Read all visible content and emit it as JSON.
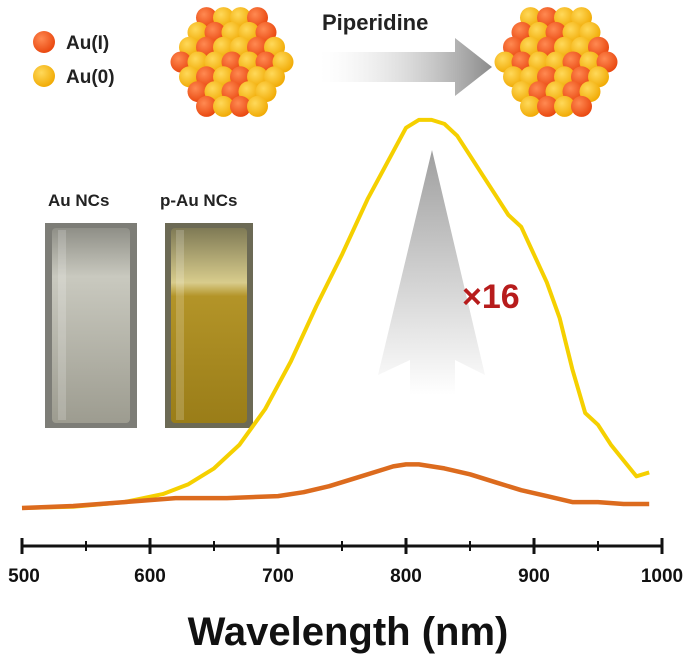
{
  "legend": {
    "items": [
      {
        "label": "Au(I)",
        "color": "#f2541a"
      },
      {
        "label": "Au(0)",
        "color": "#f7b614"
      }
    ]
  },
  "reaction": {
    "label": "Piperidine"
  },
  "vials": [
    {
      "label": "Au NCs",
      "tint": "#b9b7aa"
    },
    {
      "label": "p-Au NCs",
      "tint": "#a88a1f"
    }
  ],
  "enhancement_label": "×16",
  "colors": {
    "au_i": "#f2541a",
    "au_0": "#f7b614",
    "yellow_line": "#f5d000",
    "orange_line": "#dc6b1e",
    "annotation": "#b71c1c"
  },
  "chart_data": {
    "type": "line",
    "xlabel": "Wavelength (nm)",
    "ylabel": "",
    "xlim": [
      500,
      1000
    ],
    "ylim": [
      0,
      100
    ],
    "xticks": [
      500,
      600,
      700,
      800,
      900,
      1000
    ],
    "grid": false,
    "series": [
      {
        "color": "#f5d000",
        "x": [
          500,
          540,
          580,
          610,
          630,
          650,
          670,
          690,
          710,
          730,
          750,
          770,
          790,
          800,
          810,
          820,
          830,
          840,
          850,
          860,
          870,
          880,
          890,
          900,
          910,
          920,
          930,
          940,
          950,
          960,
          970,
          980,
          990
        ],
        "y": [
          0,
          0.3,
          1.5,
          3.5,
          6,
          10,
          16,
          25,
          37,
          51,
          64,
          78,
          90,
          96,
          98,
          98,
          97,
          94,
          89,
          84,
          79,
          74,
          71,
          64,
          57,
          48,
          35,
          24,
          21,
          16,
          12,
          8,
          9
        ]
      },
      {
        "color": "#dc6b1e",
        "x": [
          500,
          540,
          580,
          620,
          660,
          700,
          720,
          740,
          760,
          780,
          790,
          800,
          810,
          820,
          830,
          850,
          870,
          890,
          910,
          930,
          950,
          970,
          990
        ],
        "y": [
          0,
          0.5,
          1.5,
          2.5,
          2.5,
          3,
          4,
          5.5,
          7.5,
          9.5,
          10.5,
          11,
          11,
          10.5,
          10,
          8.5,
          6.5,
          4.5,
          3,
          1.5,
          1.5,
          1,
          1
        ]
      }
    ]
  }
}
